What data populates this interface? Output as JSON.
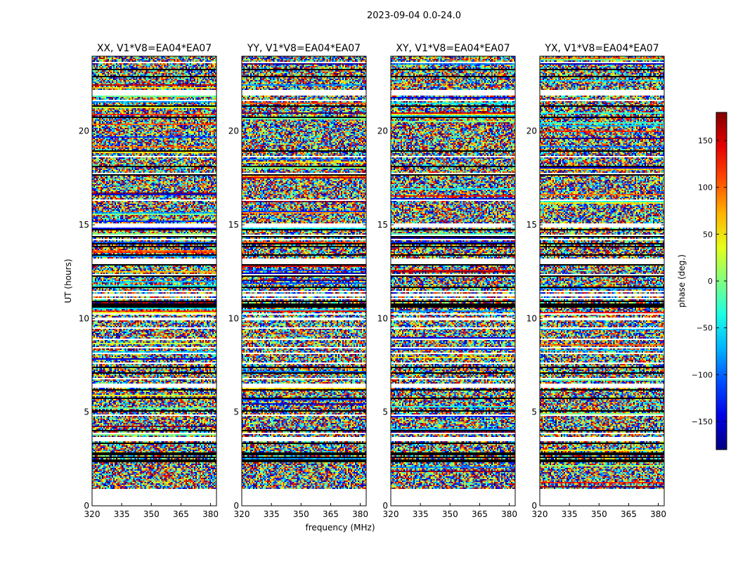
{
  "chart_data": {
    "type": "heatmap",
    "title": "2023-09-04 0.0-24.0",
    "xlabel": "frequency (MHz)",
    "ylabel": "UT (hours)",
    "xlim": [
      320,
      383
    ],
    "ylim": [
      0,
      24
    ],
    "xticks": [
      320,
      335,
      350,
      365,
      380
    ],
    "yticks": [
      0,
      5,
      10,
      15,
      20
    ],
    "panels": [
      {
        "title": "XX, V1*V8=EA04*EA07",
        "show_yticks": true
      },
      {
        "title": "YY, V1*V8=EA04*EA07",
        "show_yticks": true
      },
      {
        "title": "XY, V1*V8=EA04*EA07",
        "show_yticks": true
      },
      {
        "title": "YX, V1*V8=EA04*EA07",
        "show_yticks": true
      }
    ],
    "colorbar": {
      "label": "phase (deg.)",
      "range": [
        -180,
        180
      ],
      "ticks": [
        150,
        100,
        50,
        0,
        -50,
        -100,
        -150
      ],
      "colormap": "jet"
    },
    "data_start_hour": 0.9,
    "notes": "Per-channel visibility phase vs UT; mostly noise-like with flagged (white) time gaps."
  }
}
